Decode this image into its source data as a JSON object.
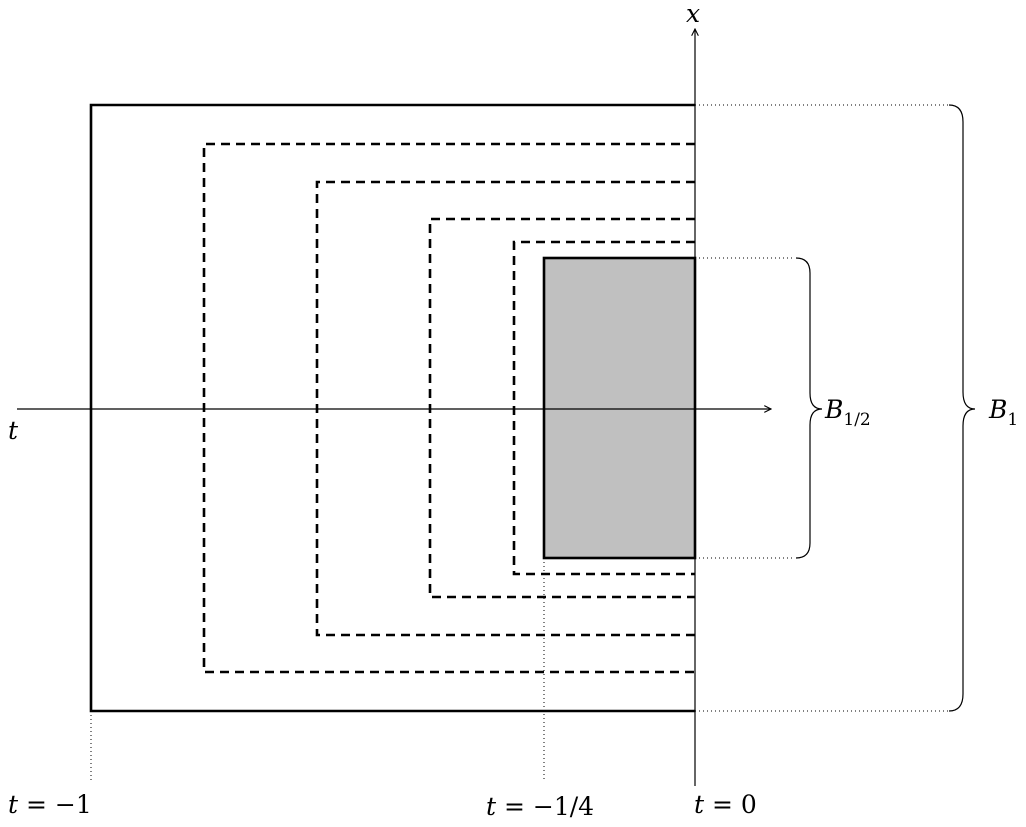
{
  "axes": {
    "horizontal_label": "t",
    "vertical_label": "x"
  },
  "braces": {
    "inner_label": "B",
    "inner_subscript": "1/2",
    "outer_label": "B",
    "outer_subscript": "1"
  },
  "time_markers": {
    "start": {
      "var": "t",
      "eq": " = ",
      "value": "−1"
    },
    "quarter": {
      "var": "t",
      "eq": " = ",
      "value": "−1/4"
    },
    "end": {
      "var": "t",
      "eq": " = ",
      "value": "0"
    }
  },
  "style": {
    "shaded_fill": "#c0c0c0",
    "stroke": "#000000"
  }
}
